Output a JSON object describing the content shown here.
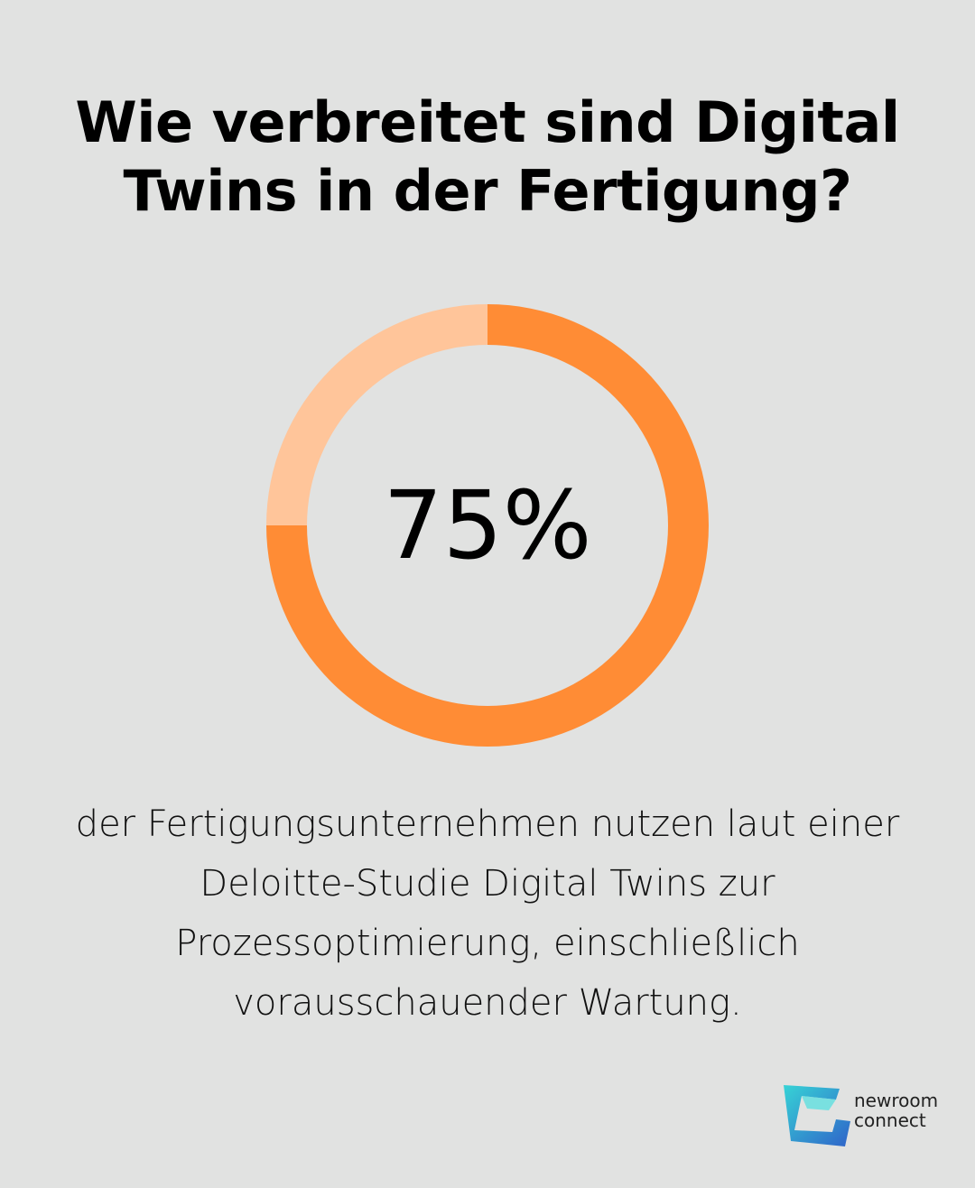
{
  "title": "Wie verbreitet sind Digital Twins in der Fertigung?",
  "description": "der Fertigungsunternehmen nutzen laut einer Deloitte-Studie Digital Twins zur Prozessoptimierung, einschließlich vorausschauender Wartung.",
  "chart_data": {
    "type": "pie",
    "variant": "donut",
    "center_label": "75%",
    "slices": [
      {
        "value": 75,
        "color": "#ff8c35"
      },
      {
        "value": 25,
        "color": "#ffc59a"
      }
    ],
    "start": "top",
    "direction": "clockwise"
  },
  "logo": {
    "line1": "newroom",
    "line2": "connect"
  },
  "colors": {
    "background": "#e1e2e1",
    "primary": "#ff8c35",
    "secondary": "#ffc59a"
  }
}
